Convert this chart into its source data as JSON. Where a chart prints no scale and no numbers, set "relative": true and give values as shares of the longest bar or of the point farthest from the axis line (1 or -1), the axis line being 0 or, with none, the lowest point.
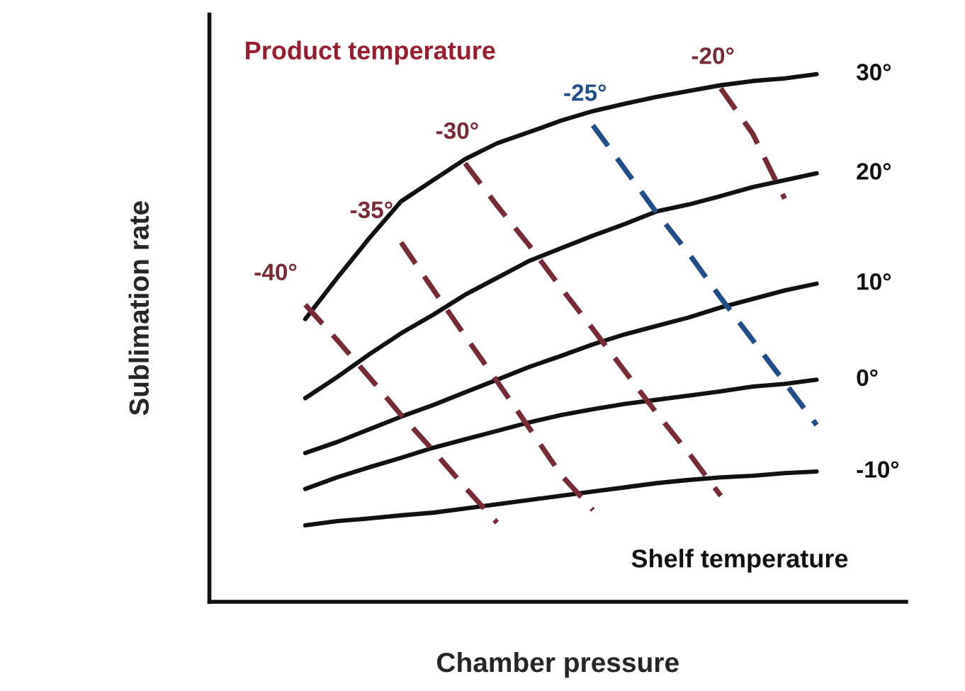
{
  "chart_data": {
    "type": "line",
    "relative": true,
    "xlabel": "Chamber pressure",
    "ylabel": "Sublimation rate",
    "annotations": [
      "Product temperature",
      "Shelf temperature"
    ],
    "categories": [
      null,
      null,
      null,
      null,
      null,
      null,
      null,
      null,
      null,
      null,
      null,
      null,
      null,
      null,
      null,
      null,
      null,
      null,
      null,
      null,
      null
    ],
    "series": [
      {
        "name": "30°",
        "color": "#111111",
        "line_style": "solid",
        "values": [
          null,
          null,
          null,
          0.536,
          0.614,
          0.689,
          0.759,
          0.799,
          0.839,
          0.869,
          0.89,
          0.912,
          0.93,
          0.944,
          0.957,
          0.968,
          0.979,
          0.987,
          0.992,
          1.0,
          null
        ]
      },
      {
        "name": "20°",
        "color": "#111111",
        "line_style": "solid",
        "values": [
          null,
          null,
          null,
          0.386,
          0.426,
          0.469,
          0.509,
          0.544,
          0.582,
          0.614,
          0.646,
          0.67,
          0.694,
          0.716,
          0.74,
          0.753,
          0.769,
          0.786,
          0.799,
          0.812,
          null
        ]
      },
      {
        "name": "10°",
        "color": "#111111",
        "line_style": "solid",
        "values": [
          null,
          null,
          null,
          0.282,
          0.303,
          0.327,
          0.351,
          0.373,
          0.397,
          0.421,
          0.445,
          0.466,
          0.488,
          0.507,
          0.523,
          0.539,
          0.558,
          0.574,
          0.59,
          0.603,
          null
        ]
      },
      {
        "name": "0°",
        "color": "#111111",
        "line_style": "solid",
        "values": [
          null,
          null,
          null,
          0.214,
          0.236,
          0.255,
          0.273,
          0.292,
          0.308,
          0.324,
          0.34,
          0.354,
          0.365,
          0.375,
          0.383,
          0.391,
          0.399,
          0.408,
          0.413,
          0.421,
          null
        ]
      },
      {
        "name": "-10°",
        "color": "#111111",
        "line_style": "solid",
        "values": [
          null,
          null,
          null,
          0.145,
          0.153,
          0.158,
          0.164,
          0.169,
          0.177,
          0.185,
          0.193,
          0.201,
          0.209,
          0.217,
          0.225,
          0.231,
          0.236,
          0.239,
          0.244,
          0.247,
          null
        ]
      },
      {
        "name": "-40°",
        "color": "#7a2a35",
        "line_style": "dashed",
        "values": [
          null,
          null,
          null,
          0.563,
          0.496,
          0.426,
          0.354,
          0.287,
          0.217,
          0.15,
          null,
          null,
          null,
          null,
          null,
          null,
          null,
          null,
          null,
          null,
          null
        ]
      },
      {
        "name": "-35°",
        "color": "#7a2a35",
        "line_style": "dashed",
        "values": [
          null,
          null,
          null,
          null,
          null,
          null,
          0.681,
          0.592,
          0.504,
          0.418,
          0.33,
          0.241,
          0.174,
          null,
          null,
          null,
          null,
          null,
          null,
          null,
          null
        ]
      },
      {
        "name": "-30°",
        "color": "#7a2a35",
        "line_style": "dashed",
        "values": [
          null,
          null,
          null,
          null,
          null,
          null,
          null,
          null,
          0.831,
          0.751,
          0.676,
          0.595,
          0.517,
          0.437,
          0.357,
          0.282,
          0.201,
          null,
          null,
          null,
          null
        ]
      },
      {
        "name": "-25°",
        "color": "#1f4e8c",
        "line_style": "dashed",
        "values": [
          null,
          null,
          null,
          null,
          null,
          null,
          null,
          null,
          null,
          null,
          null,
          null,
          0.903,
          0.82,
          0.737,
          0.66,
          0.576,
          0.496,
          0.416,
          0.335,
          null
        ]
      },
      {
        "name": "-20°",
        "color": "#7a2a35",
        "line_style": "dashed",
        "values": [
          null,
          null,
          null,
          null,
          null,
          null,
          null,
          null,
          null,
          null,
          null,
          null,
          null,
          null,
          null,
          null,
          0.973,
          0.887,
          0.764,
          null,
          null
        ]
      }
    ]
  }
}
